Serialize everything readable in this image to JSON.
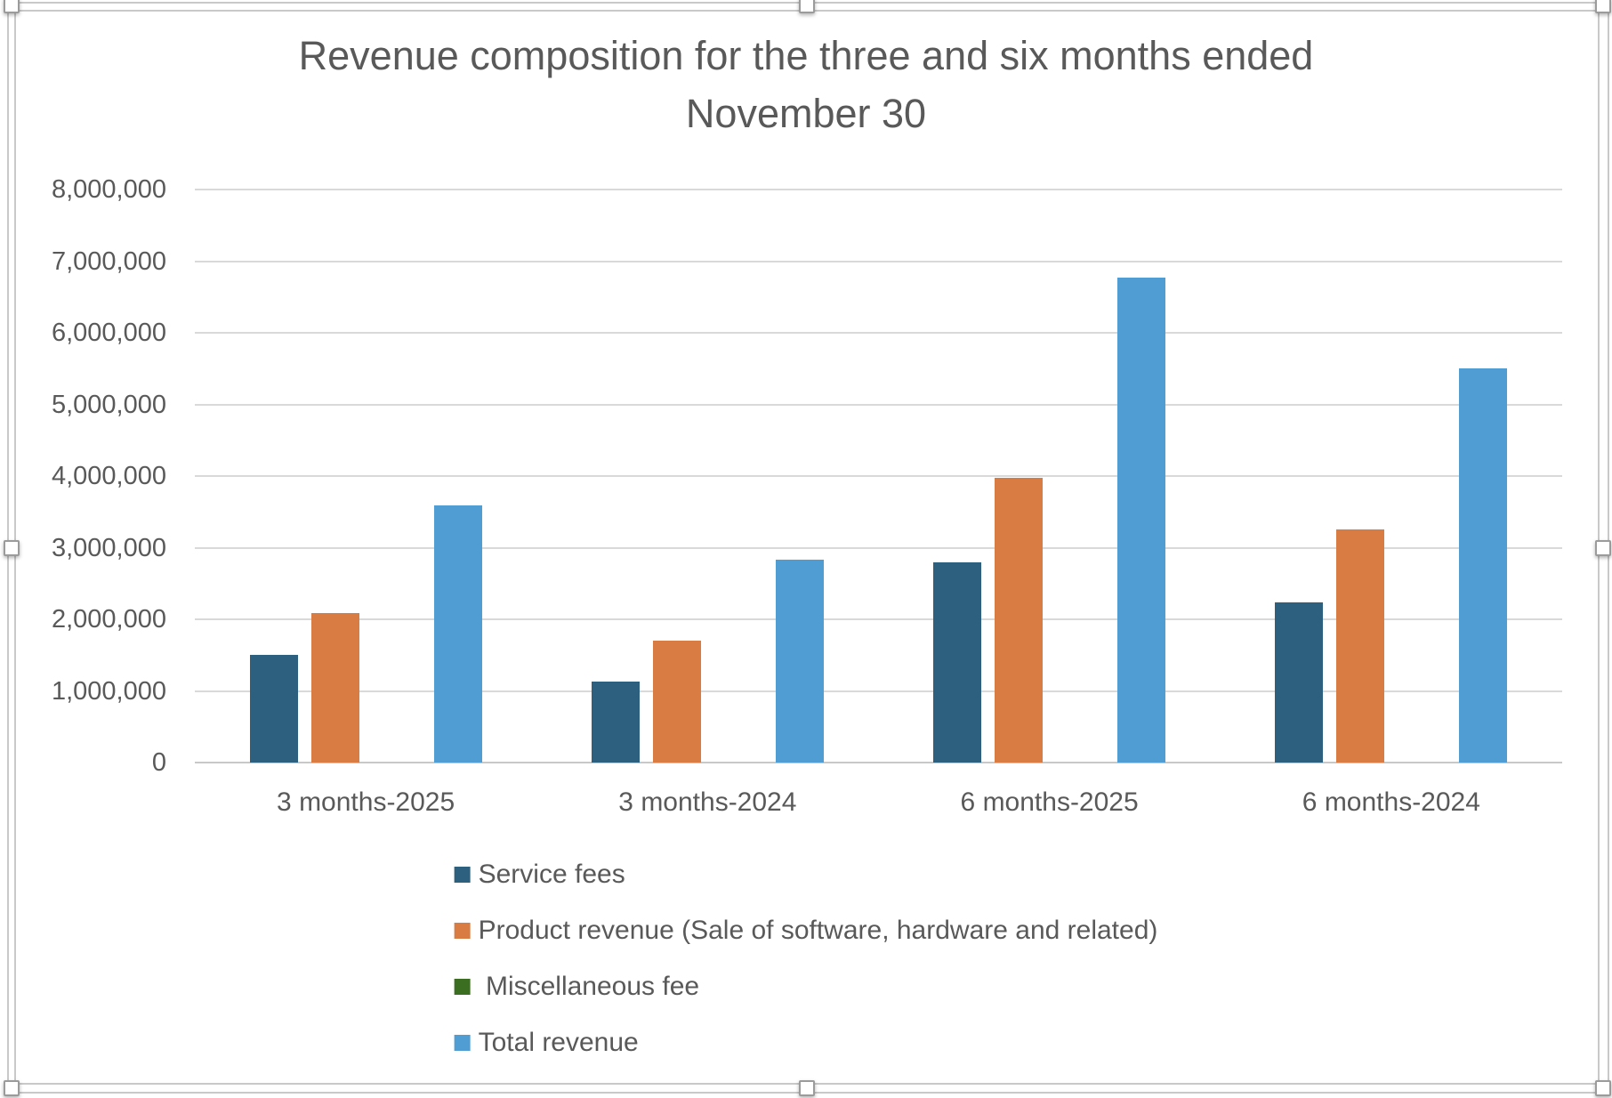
{
  "chart_data": {
    "type": "bar",
    "title": "Revenue composition for the three and six months ended November 30",
    "title_lines": [
      "Revenue composition for the three and six months ended",
      "November 30"
    ],
    "categories": [
      "3 months-2025",
      "3 months-2024",
      "6 months-2025",
      "6 months-2024"
    ],
    "series": [
      {
        "name": "Service fees",
        "color": "#2D5F7E",
        "values": [
          1500000,
          1130000,
          2800000,
          2240000
        ]
      },
      {
        "name": "Product revenue (Sale of software, hardware and related)",
        "color": "#D87C44",
        "values": [
          2090000,
          1700000,
          3970000,
          3260000
        ]
      },
      {
        "name": " Miscellaneous fee",
        "color": "#3B6E20",
        "values": [
          0,
          0,
          0,
          0
        ]
      },
      {
        "name": "Total revenue",
        "color": "#4F9DD3",
        "values": [
          3590000,
          2830000,
          6770000,
          5500000
        ]
      }
    ],
    "ylim": [
      0,
      8000000
    ],
    "ytick_step": 1000000,
    "ytick_labels_top_to_bottom": [
      "8,000,000",
      "7,000,000",
      "6,000,000",
      "5,000,000",
      "4,000,000",
      "3,000,000",
      "2,000,000",
      "1,000,000",
      "0"
    ],
    "grid": true,
    "legend_position": "bottom",
    "text_color": "#595959",
    "gridline_color": "#D9D9D9"
  }
}
